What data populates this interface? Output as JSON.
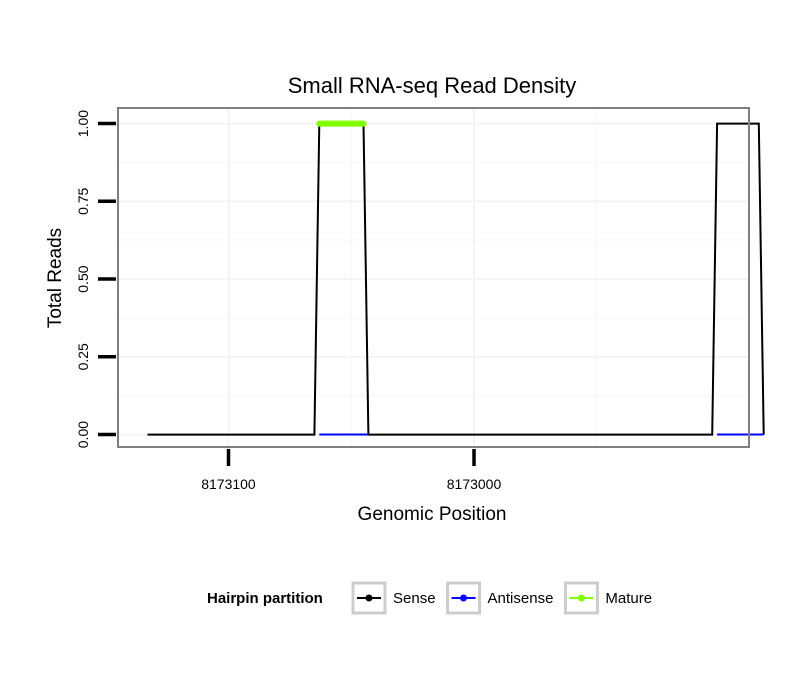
{
  "chart_data": {
    "type": "line",
    "title": "Small RNA-seq Read Density",
    "xlabel": "Genomic Position",
    "ylabel": "Total Reads",
    "x_reversed": true,
    "xlim": [
      8173145,
      8172888
    ],
    "ylim": [
      -0.04,
      1.05
    ],
    "x_ticks": [
      8173100,
      8173000
    ],
    "x_tick_labels": [
      "8173100",
      "8173000"
    ],
    "y_ticks": [
      0,
      0.25,
      0.5,
      0.75,
      1.0
    ],
    "y_tick_labels": [
      "0.00",
      "0.25",
      "0.50",
      "0.75",
      "1.00"
    ],
    "grid": true,
    "legend_position": "bottom",
    "legend_title": "Hairpin partition",
    "series": [
      {
        "name": "Sense",
        "color": "#000000",
        "x": [
          8173133,
          8173065,
          8173063,
          8173045,
          8173043,
          8172903,
          8172901,
          8172884,
          8172882
        ],
        "y": [
          0,
          0,
          1,
          1,
          0,
          0,
          1,
          1,
          0
        ]
      },
      {
        "name": "Antisense",
        "color": "#0000ff",
        "x": [
          8173063,
          8173043,
          8172901,
          8172882
        ],
        "y": [
          0,
          0,
          0,
          0
        ],
        "segments": [
          [
            0,
            1
          ],
          [
            2,
            3
          ]
        ]
      },
      {
        "name": "Mature",
        "color": "#7fff00",
        "x": [
          8173063,
          8173045
        ],
        "y": [
          1,
          1
        ]
      }
    ]
  }
}
